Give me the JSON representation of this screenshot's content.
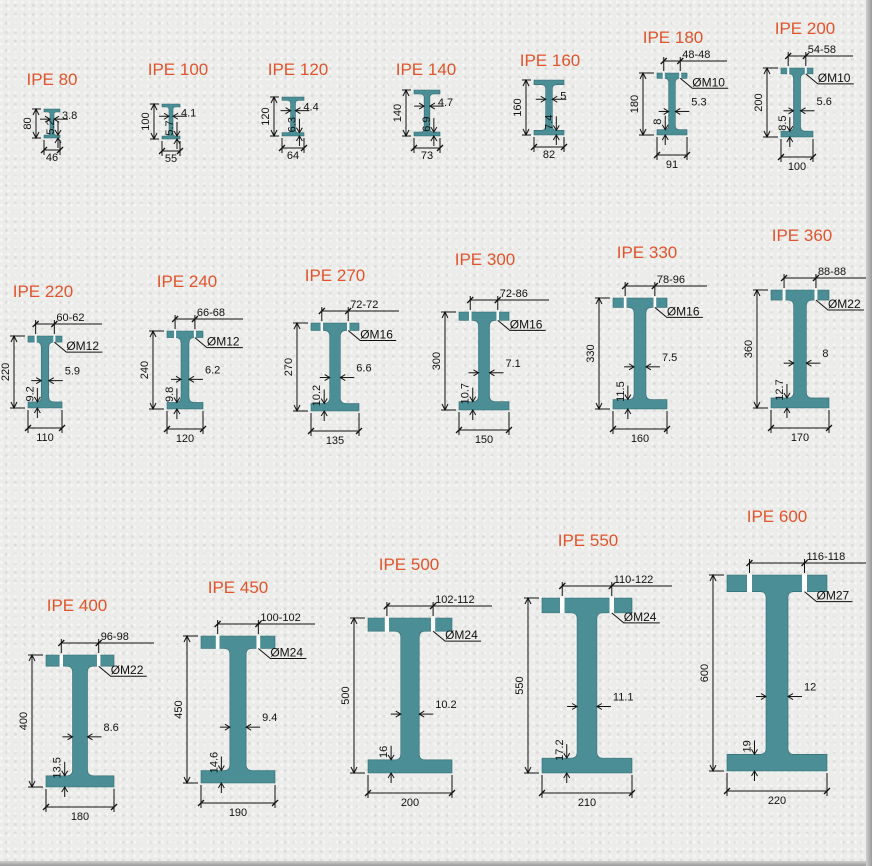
{
  "profiles": [
    {
      "name": "IPE 80",
      "height": "80",
      "width": "46",
      "web": "3.8",
      "flange": "5.2"
    },
    {
      "name": "IPE 100",
      "height": "100",
      "width": "55",
      "web": "4.1",
      "flange": "5.7"
    },
    {
      "name": "IPE 120",
      "height": "120",
      "width": "64",
      "web": "4.4",
      "flange": "6.3"
    },
    {
      "name": "IPE 140",
      "height": "140",
      "width": "73",
      "web": "4.7",
      "flange": "6.9"
    },
    {
      "name": "IPE 160",
      "height": "160",
      "width": "82",
      "web": "5",
      "flange": "7.4"
    },
    {
      "name": "IPE 180",
      "height": "180",
      "width": "91",
      "web": "5.3",
      "flange": "8",
      "gauge": "48-48",
      "bolt": "ØM10"
    },
    {
      "name": "IPE 200",
      "height": "200",
      "width": "100",
      "web": "5.6",
      "flange": "8.5",
      "gauge": "54-58",
      "bolt": "ØM10"
    },
    {
      "name": "IPE 220",
      "height": "220",
      "width": "110",
      "web": "5.9",
      "flange": "9.2",
      "gauge": "60-62",
      "bolt": "ØM12"
    },
    {
      "name": "IPE 240",
      "height": "240",
      "width": "120",
      "web": "6.2",
      "flange": "9.8",
      "gauge": "66-68",
      "bolt": "ØM12"
    },
    {
      "name": "IPE 270",
      "height": "270",
      "width": "135",
      "web": "6.6",
      "flange": "10.2",
      "gauge": "72-72",
      "bolt": "ØM16"
    },
    {
      "name": "IPE 300",
      "height": "300",
      "width": "150",
      "web": "7.1",
      "flange": "10.7",
      "gauge": "72-86",
      "bolt": "ØM16"
    },
    {
      "name": "IPE 330",
      "height": "330",
      "width": "160",
      "web": "7.5",
      "flange": "11.5",
      "gauge": "78-96",
      "bolt": "ØM16"
    },
    {
      "name": "IPE 360",
      "height": "360",
      "width": "170",
      "web": "8",
      "flange": "12.7",
      "gauge": "88-88",
      "bolt": "ØM22"
    },
    {
      "name": "IPE 400",
      "height": "400",
      "width": "180",
      "web": "8.6",
      "flange": "13.5",
      "gauge": "96-98",
      "bolt": "ØM22"
    },
    {
      "name": "IPE 450",
      "height": "450",
      "width": "190",
      "web": "9.4",
      "flange": "14.6",
      "gauge": "100-102",
      "bolt": "ØM24"
    },
    {
      "name": "IPE 500",
      "height": "500",
      "width": "200",
      "web": "10.2",
      "flange": "16",
      "gauge": "102-112",
      "bolt": "ØM24"
    },
    {
      "name": "IPE 550",
      "height": "550",
      "width": "210",
      "web": "11.1",
      "flange": "17.2",
      "gauge": "110-122",
      "bolt": "ØM24"
    },
    {
      "name": "IPE 600",
      "height": "600",
      "width": "220",
      "web": "12",
      "flange": "19",
      "gauge": "116-118",
      "bolt": "ØM27"
    }
  ]
}
